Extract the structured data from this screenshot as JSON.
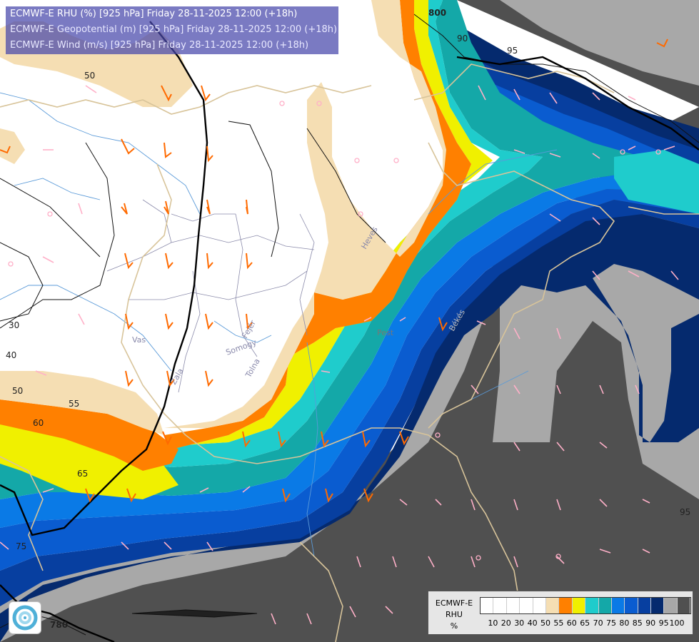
{
  "titles": {
    "line1": "ECMWF-E RHU (%) [925 hPa] Friday 28-11-2025 12:00 (+18h)",
    "line2": "ECMWF-E Geopotential (m) [925 hPa] Friday 28-11-2025 12:00 (+18h)",
    "line3": "ECMWF-E Wind (m/s) [925 hPa] Friday 28-11-2025 12:00 (+18h)"
  },
  "legend": {
    "title_line1": "ECMWF-E",
    "title_line2": "RHU",
    "title_line3": "%",
    "colors": [
      "#ffffff",
      "#ffffff",
      "#ffffff",
      "#ffffff",
      "#ffffff",
      "#f5deb3",
      "#ff8000",
      "#f0f000",
      "#1fcccc",
      "#14a8a8",
      "#0a7ae6",
      "#0a5cd0",
      "#073fa0",
      "#052a6e",
      "#a8a8a8",
      "#505050"
    ],
    "ticks": [
      "10",
      "20",
      "30",
      "40",
      "50",
      "55",
      "60",
      "65",
      "70",
      "75",
      "80",
      "85",
      "90",
      "95",
      "100"
    ]
  },
  "contour_labels": {
    "c30": "30",
    "c40": "40",
    "c50a": "50",
    "c50b": "50",
    "c55": "55",
    "c60": "60",
    "c65": "65",
    "c75": "75",
    "c95": "95",
    "c780": "780",
    "c800": "800",
    "c90": "90",
    "c95b": "95"
  },
  "place_labels": {
    "vas": "Vas",
    "zala": "Zala",
    "somogy": "Somogy",
    "fejer": "Fejér",
    "tolna": "Tolna",
    "pest": "Pest",
    "heves": "Heves",
    "bekes": "Békés"
  },
  "colors": {
    "white": "#ffffff",
    "wheat": "#f5deb3",
    "orange": "#ff8000",
    "yellow": "#f0f000",
    "cyan": "#1fcccc",
    "teal": "#14a8a8",
    "blue80": "#0a7ae6",
    "blue85": "#0a5cd0",
    "blue90": "#073fa0",
    "navy": "#052a6e",
    "lightgray": "#a8a8a8",
    "darkgray": "#505050"
  }
}
